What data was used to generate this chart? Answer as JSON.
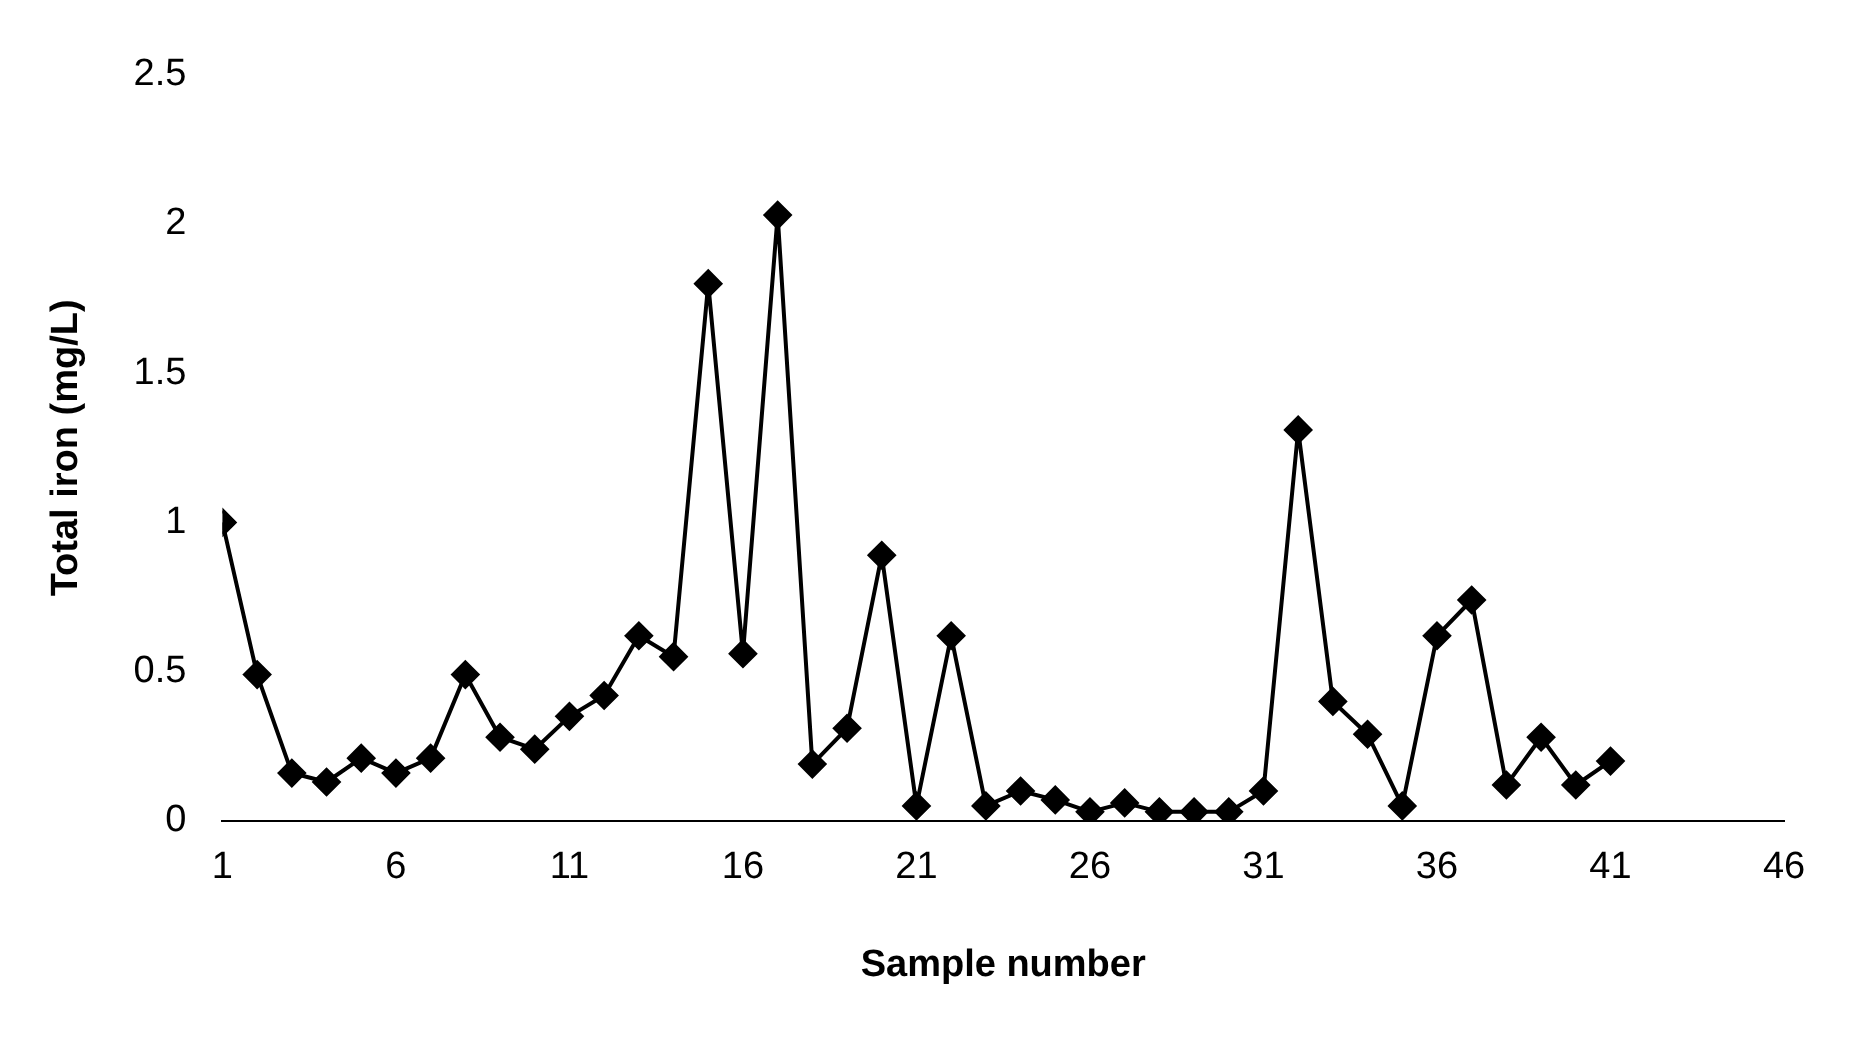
{
  "chart_data": {
    "type": "line",
    "xlabel": "Sample number",
    "ylabel": "Total iron (mg/L)",
    "x": [
      1,
      2,
      3,
      4,
      5,
      6,
      7,
      8,
      9,
      10,
      11,
      12,
      13,
      14,
      15,
      16,
      17,
      18,
      19,
      20,
      21,
      22,
      23,
      24,
      25,
      26,
      27,
      28,
      29,
      30,
      31,
      32,
      33,
      34,
      35,
      36,
      37,
      38,
      39,
      40,
      41
    ],
    "series": [
      {
        "color": "#000000",
        "values": [
          1.0,
          0.49,
          0.16,
          0.13,
          0.21,
          0.16,
          0.21,
          0.49,
          0.28,
          0.24,
          0.35,
          0.42,
          0.62,
          0.55,
          1.8,
          0.56,
          2.03,
          0.19,
          0.31,
          0.89,
          0.05,
          0.62,
          0.05,
          0.1,
          0.07,
          0.03,
          0.06,
          0.03,
          0.03,
          0.03,
          0.1,
          1.31,
          0.4,
          0.29,
          0.05,
          0.62,
          0.74,
          0.12,
          0.28,
          0.12,
          0.2
        ]
      }
    ],
    "xlim": [
      1,
      46
    ],
    "xticks": [
      1,
      6,
      11,
      16,
      21,
      26,
      31,
      36,
      41,
      46
    ],
    "ylim": [
      0,
      2.5
    ],
    "yticks": [
      0,
      0.5,
      1,
      1.5,
      2,
      2.5
    ],
    "marker": "diamond",
    "line_style": "solid",
    "legend": false
  }
}
